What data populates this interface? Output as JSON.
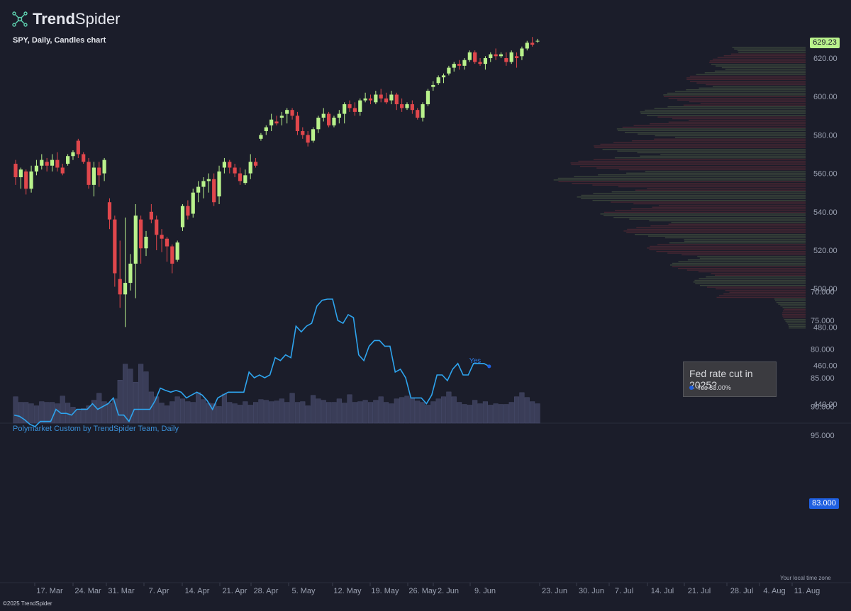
{
  "brand": {
    "name_bold": "Trend",
    "name_light": "Spider",
    "logo_icon": "spider-network-icon"
  },
  "subtitle": "SPY, Daily, Candles chart",
  "footer": "©2025 TrendSpider",
  "local_time": "Your local time zone",
  "indicator_title": "Polymarket Custom by TrendSpider Team, Daily",
  "price_badge": "629.23",
  "indicator_badge": "83.000",
  "series_label": "Yes",
  "legend": {
    "title": "Fed rate cut in 2025?",
    "entry": "Yes 83.00%"
  },
  "colors": {
    "background": "#1b1d2a",
    "up": "#b9f28c",
    "down": "#e0474c",
    "volume": "#3a3d58",
    "indicator_line": "#2ea4ee",
    "badge_blue": "#1f5fe0"
  },
  "chart_data": [
    {
      "type": "candlestick",
      "title": "SPY, Daily, Candles chart",
      "x_ticks": [
        "17. Mar",
        "24. Mar",
        "31. Mar",
        "7. Apr",
        "14. Apr",
        "21. Apr",
        "28. Apr",
        "5. May",
        "12. May",
        "19. May",
        "26. May",
        "2. Jun",
        "9. Jun",
        "23. Jun",
        "30. Jun",
        "7. Jul",
        "14. Jul",
        "21. Jul",
        "28. Jul",
        "4. Aug",
        "11. Aug"
      ],
      "y_ticks": [
        "620.00",
        "600.00",
        "580.00",
        "560.00",
        "540.00",
        "520.00",
        "500.00",
        "480.00",
        "460.00",
        "440.00"
      ],
      "ylim": [
        435,
        632
      ],
      "last_price": 629.23,
      "candles": [
        [
          565,
          567,
          554,
          558
        ],
        [
          558,
          563,
          552,
          562
        ],
        [
          561,
          562,
          549,
          552
        ],
        [
          552,
          564,
          550,
          561
        ],
        [
          561,
          567,
          559,
          564
        ],
        [
          564,
          570,
          562,
          567
        ],
        [
          566,
          568,
          561,
          564
        ],
        [
          564,
          570,
          561,
          567
        ],
        [
          567,
          571,
          561,
          563
        ],
        [
          563,
          565,
          559,
          560
        ],
        [
          565,
          570,
          564,
          569
        ],
        [
          569,
          572,
          567,
          571
        ],
        [
          577,
          578,
          568,
          570
        ],
        [
          570,
          571,
          565,
          566
        ],
        [
          566,
          568,
          552,
          554
        ],
        [
          554,
          566,
          548,
          563
        ],
        [
          563,
          566,
          553,
          559
        ],
        [
          560,
          568,
          556,
          567
        ],
        [
          545,
          547,
          531,
          536
        ],
        [
          536,
          538,
          501,
          508
        ],
        [
          505,
          525,
          490,
          497
        ],
        [
          497,
          537,
          480,
          503
        ],
        [
          503,
          518,
          499,
          513
        ],
        [
          513,
          544,
          495,
          538
        ],
        [
          536,
          538,
          513,
          521
        ],
        [
          521,
          530,
          517,
          527
        ],
        [
          540,
          544,
          534,
          536
        ],
        [
          536,
          538,
          520,
          528
        ],
        [
          528,
          531,
          519,
          526
        ],
        [
          526,
          527,
          514,
          522
        ],
        [
          522,
          523,
          508,
          513
        ],
        [
          515,
          525,
          514,
          524
        ],
        [
          532,
          544,
          530,
          543
        ],
        [
          543,
          546,
          536,
          538
        ],
        [
          539,
          552,
          537,
          550
        ],
        [
          550,
          556,
          545,
          553
        ],
        [
          553,
          558,
          547,
          556
        ],
        [
          556,
          560,
          550,
          557
        ],
        [
          557,
          560,
          543,
          545
        ],
        [
          548,
          564,
          544,
          561
        ],
        [
          563,
          568,
          560,
          566
        ],
        [
          566,
          567,
          560,
          563
        ],
        [
          563,
          565,
          558,
          560
        ],
        [
          560,
          563,
          554,
          556
        ],
        [
          555,
          562,
          554,
          559
        ],
        [
          560,
          570,
          557,
          566
        ],
        [
          566,
          568,
          563,
          564
        ],
        [
          578,
          581,
          577,
          580
        ],
        [
          582,
          585,
          580,
          584
        ],
        [
          585,
          591,
          582,
          588
        ],
        [
          587,
          590,
          585,
          586
        ],
        [
          589,
          592,
          585,
          590
        ],
        [
          591,
          594,
          586,
          593
        ],
        [
          593,
          594,
          588,
          590
        ],
        [
          590,
          592,
          580,
          582
        ],
        [
          582,
          584,
          578,
          580
        ],
        [
          580,
          582,
          574,
          576
        ],
        [
          577,
          584,
          576,
          583
        ],
        [
          583,
          590,
          581,
          589
        ],
        [
          589,
          594,
          587,
          591
        ],
        [
          591,
          592,
          584,
          585
        ],
        [
          585,
          590,
          584,
          589
        ],
        [
          589,
          593,
          586,
          591
        ],
        [
          591,
          597,
          586,
          596
        ],
        [
          596,
          598,
          592,
          594
        ],
        [
          594,
          597,
          590,
          592
        ],
        [
          592,
          599,
          590,
          598
        ],
        [
          598,
          602,
          597,
          599
        ],
        [
          599,
          601,
          596,
          598
        ],
        [
          597,
          603,
          596,
          601
        ],
        [
          601,
          604,
          597,
          599
        ],
        [
          599,
          602,
          596,
          597
        ],
        [
          598,
          603,
          596,
          601
        ],
        [
          601,
          602,
          593,
          596
        ],
        [
          596,
          599,
          592,
          594
        ],
        [
          594,
          597,
          593,
          596
        ],
        [
          596,
          598,
          591,
          593
        ],
        [
          593,
          594,
          588,
          589
        ],
        [
          589,
          597,
          587,
          596
        ],
        [
          596,
          604,
          595,
          603
        ],
        [
          605,
          608,
          603,
          606
        ],
        [
          607,
          611,
          606,
          610
        ],
        [
          610,
          612,
          607,
          611
        ],
        [
          612,
          616,
          611,
          615
        ],
        [
          615,
          618,
          613,
          617
        ],
        [
          617,
          619,
          614,
          616
        ],
        [
          616,
          620,
          614,
          619
        ],
        [
          619,
          624,
          618,
          623
        ],
        [
          623,
          624,
          617,
          618
        ],
        [
          618,
          620,
          616,
          617
        ],
        [
          617,
          621,
          614,
          620
        ],
        [
          620,
          623,
          618,
          622
        ],
        [
          622,
          625,
          619,
          621
        ],
        [
          621,
          623,
          620,
          622
        ],
        [
          620,
          623,
          616,
          618
        ],
        [
          618,
          624,
          617,
          623
        ],
        [
          621,
          623,
          615,
          620
        ],
        [
          621,
          626,
          619,
          625
        ],
        [
          625,
          629,
          624,
          628
        ],
        [
          628,
          631,
          626,
          627
        ],
        [
          629,
          630,
          628,
          629
        ]
      ],
      "volumes": [
        0.38,
        0.3,
        0.3,
        0.28,
        0.25,
        0.31,
        0.3,
        0.3,
        0.28,
        0.39,
        0.29,
        0.23,
        0.18,
        0.21,
        0.25,
        0.33,
        0.43,
        0.31,
        0.29,
        0.35,
        0.62,
        0.85,
        0.78,
        0.59,
        0.85,
        0.74,
        0.45,
        0.38,
        0.29,
        0.25,
        0.31,
        0.38,
        0.35,
        0.31,
        0.3,
        0.44,
        0.34,
        0.29,
        0.28,
        0.24,
        0.42,
        0.3,
        0.28,
        0.26,
        0.31,
        0.26,
        0.3,
        0.34,
        0.33,
        0.31,
        0.32,
        0.35,
        0.3,
        0.43,
        0.3,
        0.31,
        0.25,
        0.4,
        0.35,
        0.33,
        0.3,
        0.3,
        0.35,
        0.29,
        0.41,
        0.3,
        0.31,
        0.33,
        0.3,
        0.33,
        0.38,
        0.3,
        0.28,
        0.35,
        0.37,
        0.39,
        0.36,
        0.32,
        0.3,
        0.26,
        0.31,
        0.35,
        0.38,
        0.45,
        0.38,
        0.3,
        0.27,
        0.26,
        0.33,
        0.28,
        0.31,
        0.26,
        0.28,
        0.27,
        0.27,
        0.3,
        0.38,
        0.44,
        0.37,
        0.31,
        0.28
      ]
    },
    {
      "type": "line",
      "title": "Polymarket Custom by TrendSpider Team, Daily",
      "series": [
        {
          "name": "Yes",
          "values": [
            91.5,
            91.7,
            92.3,
            93.1,
            93.5,
            92.6,
            92.6,
            92.6,
            90.5,
            91.2,
            91.2,
            91.5,
            90.5,
            90.5,
            90.5,
            89.5,
            90.5,
            90.0,
            89.5,
            88.5,
            91.5,
            91.5,
            92.6,
            90.5,
            90.5,
            90.5,
            90.5,
            89.0,
            86.8,
            87.2,
            87.5,
            87.2,
            87.5,
            88.5,
            88.0,
            87.5,
            88.0,
            89.0,
            90.5,
            88.5,
            88.0,
            87.5,
            87.5,
            87.5,
            87.5,
            84.0,
            85.0,
            84.5,
            85.0,
            84.5,
            81.5,
            82.0,
            81.0,
            81.5,
            76.0,
            77.0,
            76.0,
            75.5,
            72.5,
            71.5,
            71.3,
            71.3,
            75.0,
            75.5,
            74.0,
            74.5,
            81.0,
            82.0,
            79.5,
            78.5,
            78.5,
            79.5,
            79.5,
            84.0,
            83.5,
            85.0,
            88.5,
            88.5,
            88.5,
            89.5,
            88.0,
            84.5,
            84.5,
            85.5,
            83.5,
            82.5,
            84.5,
            84.5,
            82.5,
            82.5,
            82.5,
            83.0
          ]
        }
      ],
      "y_ticks": [
        "95.000",
        "90.000",
        "85.000",
        "80.000",
        "75.000",
        "70.000"
      ],
      "ylim": [
        69,
        96
      ],
      "last_value": 83.0
    }
  ]
}
